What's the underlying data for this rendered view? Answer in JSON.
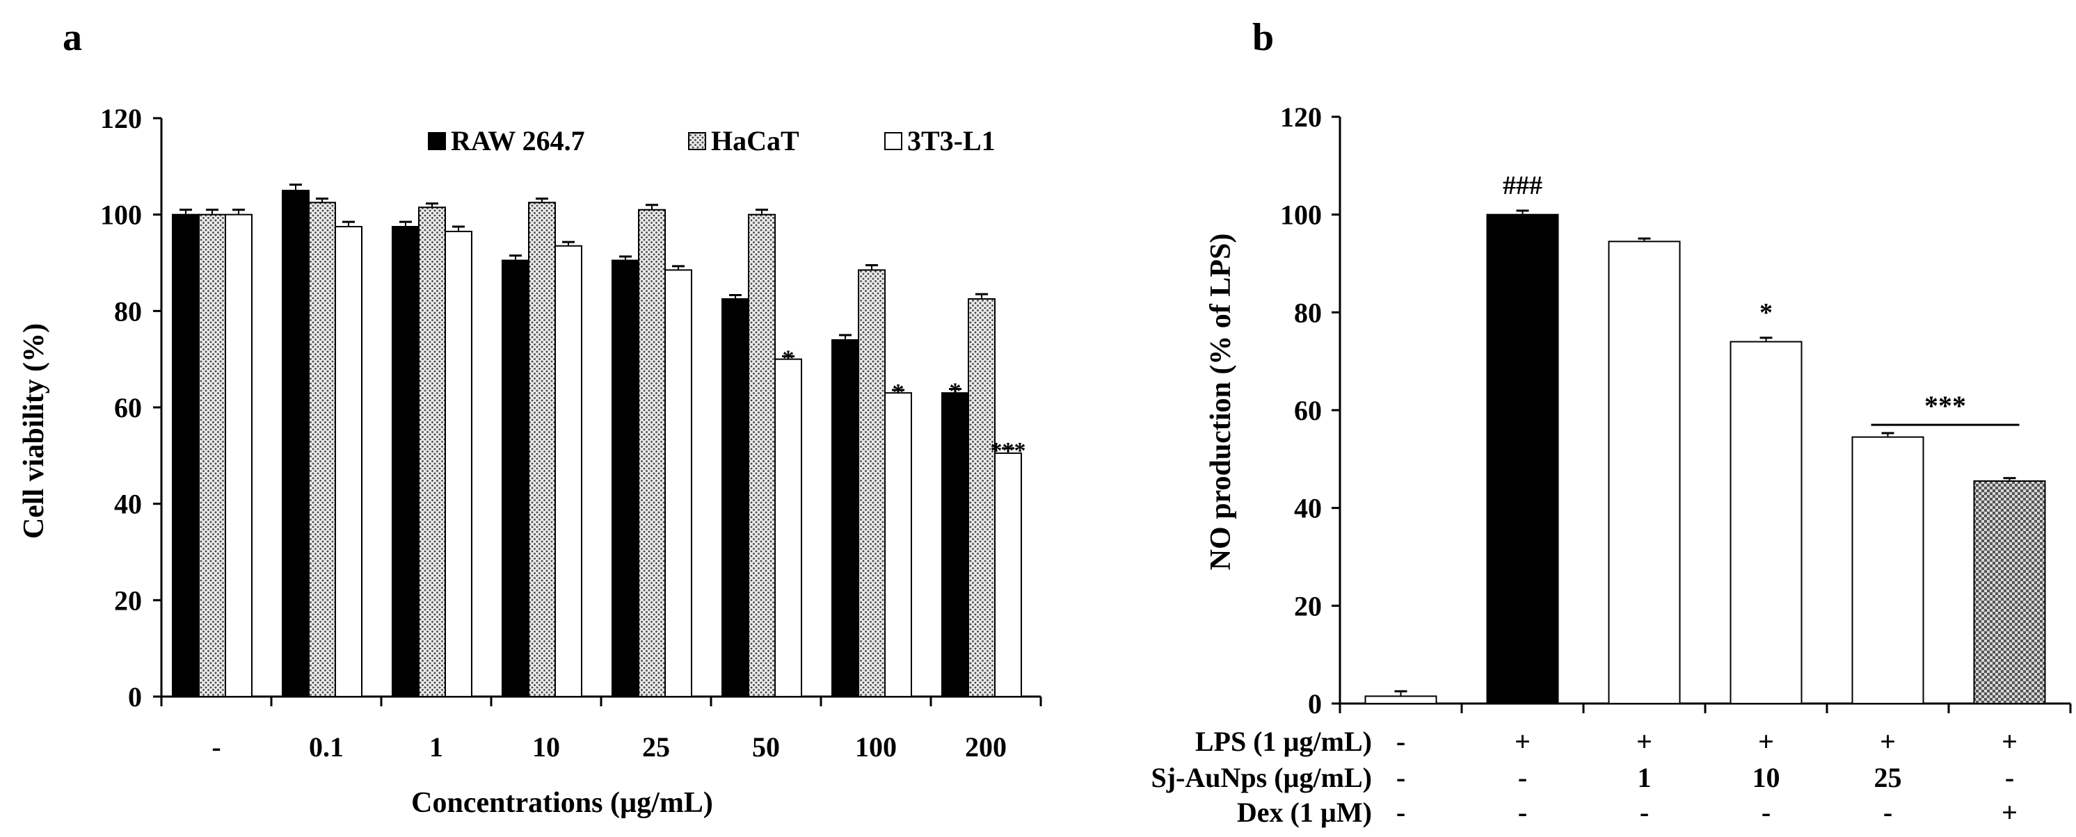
{
  "chart_data": [
    {
      "panel": "a",
      "type": "bar",
      "ylabel": "Cell viability (%)",
      "xlabel": "Concentrations (µg/mL)",
      "ylim": [
        0,
        120
      ],
      "yticks": [
        0,
        20,
        40,
        60,
        80,
        100,
        120
      ],
      "grid": false,
      "legend_position": "top-right",
      "categories": [
        "-",
        "0.1",
        "1",
        "10",
        "25",
        "50",
        "100",
        "200"
      ],
      "series": [
        {
          "name": "RAW 264.7",
          "fill": "black",
          "values": [
            100,
            105,
            97.5,
            90.5,
            90.5,
            82.5,
            74,
            63
          ],
          "errors": [
            1,
            1.2,
            1,
            1,
            0.8,
            0.8,
            1,
            0.8
          ],
          "marks": [
            "",
            "",
            "",
            "",
            "",
            "",
            "",
            "*"
          ]
        },
        {
          "name": "HaCaT",
          "fill": "dotted",
          "values": [
            100,
            102.5,
            101.5,
            102.5,
            101,
            100,
            88.5,
            82.5
          ],
          "errors": [
            1,
            0.8,
            0.8,
            0.8,
            1,
            1,
            1,
            1
          ],
          "marks": [
            "",
            "",
            "",
            "",
            "",
            "",
            "",
            ""
          ]
        },
        {
          "name": "3T3-L1",
          "fill": "white",
          "values": [
            100,
            97.5,
            96.5,
            93.5,
            88.5,
            70,
            63,
            50.5
          ],
          "errors": [
            1,
            1,
            1,
            0.8,
            0.8,
            0.6,
            0.6,
            1
          ],
          "marks": [
            "",
            "",
            "",
            "",
            "",
            "*",
            "*",
            "***"
          ]
        }
      ]
    },
    {
      "panel": "b",
      "type": "bar",
      "ylabel": "NO production  (% of LPS)",
      "ylim": [
        0,
        120
      ],
      "yticks": [
        0,
        20,
        40,
        60,
        80,
        100,
        120
      ],
      "grid": false,
      "values": [
        1.5,
        100,
        94.5,
        74,
        54.5,
        45.5
      ],
      "errors": [
        1,
        0.8,
        0.6,
        0.8,
        0.8,
        0.6
      ],
      "fills": [
        "white",
        "black",
        "white",
        "white",
        "white",
        "checker"
      ],
      "marks": [
        "",
        "###",
        "",
        "*",
        "",
        ""
      ],
      "bracket": {
        "from_index": 4,
        "to_index": 5,
        "label": "***"
      },
      "treatment_rows": [
        {
          "label": "LPS (1 µg/mL)",
          "values": [
            "-",
            "+",
            "+",
            "+",
            "+",
            "+"
          ]
        },
        {
          "label": "Sj-AuNps (µg/mL)",
          "values": [
            "-",
            "-",
            "1",
            "10",
            "25",
            "-"
          ]
        },
        {
          "label": "Dex (1 µM)",
          "values": [
            "-",
            "-",
            "-",
            "-",
            "-",
            "+"
          ]
        }
      ]
    }
  ]
}
